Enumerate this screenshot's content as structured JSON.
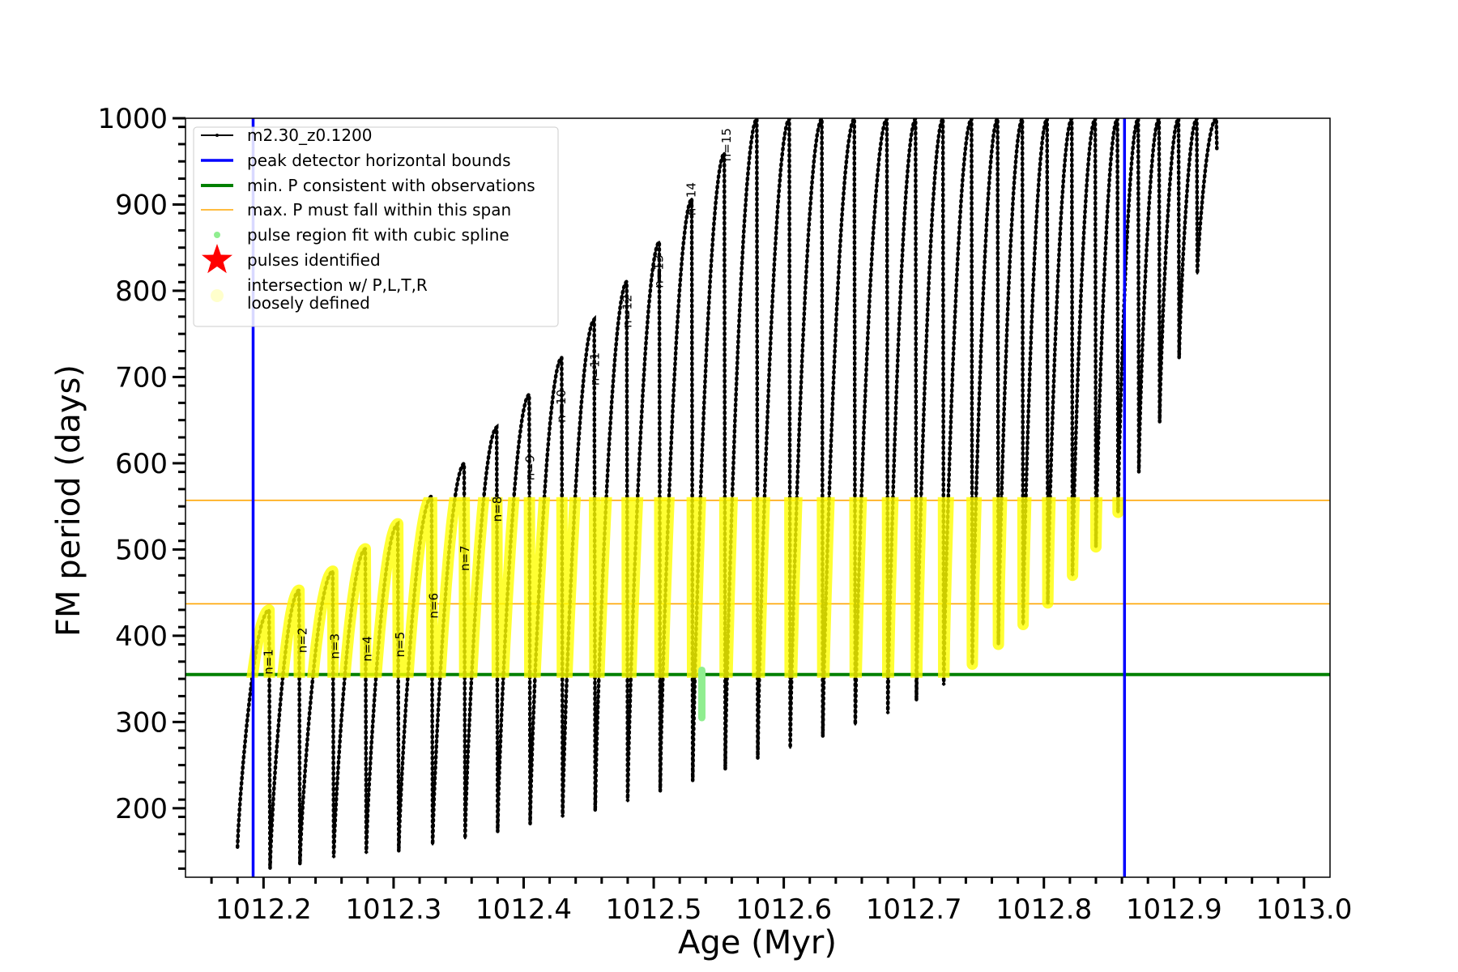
{
  "chart_data": {
    "type": "line",
    "xlabel": "Age (Myr)",
    "ylabel": "FM period (days)",
    "xlim": [
      1012.14,
      1013.02
    ],
    "ylim": [
      120,
      1000
    ],
    "xticks": [
      1012.2,
      1012.3,
      1012.4,
      1012.5,
      1012.6,
      1012.7,
      1012.8,
      1012.9,
      1013.0
    ],
    "xtick_labels": [
      "1012.2",
      "1012.3",
      "1012.4",
      "1012.5",
      "1012.6",
      "1012.7",
      "1012.8",
      "1012.9",
      "1013.0"
    ],
    "yticks": [
      200,
      300,
      400,
      500,
      600,
      700,
      800,
      900,
      1000
    ],
    "ytick_labels": [
      "200",
      "300",
      "400",
      "500",
      "600",
      "700",
      "800",
      "900",
      "1000"
    ],
    "grid": false,
    "legend_position": "top-left",
    "colors": {
      "track": "#000000",
      "bounds": "#0000ff",
      "min_p": "#008000",
      "max_p": "#ffa500",
      "spline": "#90ee90",
      "pulses": "#ff0000",
      "intersection": "#ffff00",
      "loosely": "#ffffcc"
    },
    "legend": [
      {
        "key": "track",
        "label": "m2.30_z0.1200"
      },
      {
        "key": "bounds",
        "label": "peak detector horizontal bounds"
      },
      {
        "key": "min_p",
        "label": "min. P consistent with observations"
      },
      {
        "key": "max_p",
        "label": "max. P must fall within this span"
      },
      {
        "key": "spline",
        "label": "pulse region fit with cubic spline"
      },
      {
        "key": "pulses",
        "label": "pulses identified"
      },
      {
        "key": "intersection",
        "label": "intersection w/ P,L,T,R"
      },
      {
        "key": "loosely",
        "label": "loosely defined"
      }
    ],
    "vlines": [
      1012.192,
      1012.862
    ],
    "hline_min_p": 355,
    "hspan_max_p": [
      437,
      557
    ],
    "track_start": {
      "x": 1012.18,
      "y": 155
    },
    "pulse_cycles": [
      {
        "dip_x": 1012.205,
        "dip_y": 130,
        "peak": 430
      },
      {
        "dip_x": 1012.228,
        "dip_y": 135,
        "peak": 453
      },
      {
        "dip_x": 1012.254,
        "dip_y": 143,
        "peak": 475
      },
      {
        "dip_x": 1012.279,
        "dip_y": 148,
        "peak": 501
      },
      {
        "dip_x": 1012.304,
        "dip_y": 150,
        "peak": 530
      },
      {
        "dip_x": 1012.33,
        "dip_y": 158,
        "peak": 562
      },
      {
        "dip_x": 1012.355,
        "dip_y": 165,
        "peak": 600
      },
      {
        "dip_x": 1012.38,
        "dip_y": 173,
        "peak": 642
      },
      {
        "dip_x": 1012.405,
        "dip_y": 182,
        "peak": 680
      },
      {
        "dip_x": 1012.43,
        "dip_y": 190,
        "peak": 723
      },
      {
        "dip_x": 1012.455,
        "dip_y": 197,
        "peak": 767
      },
      {
        "dip_x": 1012.48,
        "dip_y": 208,
        "peak": 811
      },
      {
        "dip_x": 1012.505,
        "dip_y": 220,
        "peak": 857
      },
      {
        "dip_x": 1012.53,
        "dip_y": 232,
        "peak": 907
      },
      {
        "dip_x": 1012.555,
        "dip_y": 245,
        "peak": 960
      },
      {
        "dip_x": 1012.58,
        "dip_y": 258,
        "peak": 1000
      },
      {
        "dip_x": 1012.605,
        "dip_y": 270,
        "peak": 1000
      },
      {
        "dip_x": 1012.63,
        "dip_y": 283,
        "peak": 1000
      },
      {
        "dip_x": 1012.655,
        "dip_y": 297,
        "peak": 1000
      },
      {
        "dip_x": 1012.68,
        "dip_y": 310,
        "peak": 1000
      },
      {
        "dip_x": 1012.702,
        "dip_y": 325,
        "peak": 1000
      },
      {
        "dip_x": 1012.723,
        "dip_y": 343,
        "peak": 1000
      },
      {
        "dip_x": 1012.745,
        "dip_y": 367,
        "peak": 1000
      },
      {
        "dip_x": 1012.765,
        "dip_y": 390,
        "peak": 1000
      },
      {
        "dip_x": 1012.784,
        "dip_y": 413,
        "peak": 1000
      },
      {
        "dip_x": 1012.803,
        "dip_y": 438,
        "peak": 1000
      },
      {
        "dip_x": 1012.822,
        "dip_y": 470,
        "peak": 1000
      },
      {
        "dip_x": 1012.84,
        "dip_y": 503,
        "peak": 1000
      },
      {
        "dip_x": 1012.857,
        "dip_y": 543,
        "peak": 1000
      },
      {
        "dip_x": 1012.873,
        "dip_y": 590,
        "peak": 1000
      },
      {
        "dip_x": 1012.889,
        "dip_y": 648,
        "peak": 1000
      },
      {
        "dip_x": 1012.904,
        "dip_y": 722,
        "peak": 1000
      },
      {
        "dip_x": 1012.918,
        "dip_y": 820,
        "peak": 1000
      },
      {
        "dip_x": 1012.933,
        "dip_y": 965,
        "peak": 1000
      }
    ],
    "pulse_labels": [
      {
        "text": "n=1",
        "x": 1012.207,
        "y": 355
      },
      {
        "text": "n=2",
        "x": 1012.233,
        "y": 380
      },
      {
        "text": "n=3",
        "x": 1012.258,
        "y": 373
      },
      {
        "text": "n=4",
        "x": 1012.283,
        "y": 370
      },
      {
        "text": "n=5",
        "x": 1012.308,
        "y": 375
      },
      {
        "text": "n=6",
        "x": 1012.334,
        "y": 420
      },
      {
        "text": "n=7",
        "x": 1012.358,
        "y": 475
      },
      {
        "text": "n=8",
        "x": 1012.383,
        "y": 532
      },
      {
        "text": "n=9",
        "x": 1012.408,
        "y": 580
      },
      {
        "text": "n=10",
        "x": 1012.432,
        "y": 647
      },
      {
        "text": "n=11",
        "x": 1012.458,
        "y": 690
      },
      {
        "text": "n=12",
        "x": 1012.483,
        "y": 757
      },
      {
        "text": "n=13",
        "x": 1012.507,
        "y": 803
      },
      {
        "text": "n=14",
        "x": 1012.532,
        "y": 887
      },
      {
        "text": "n=15",
        "x": 1012.559,
        "y": 950
      }
    ]
  }
}
